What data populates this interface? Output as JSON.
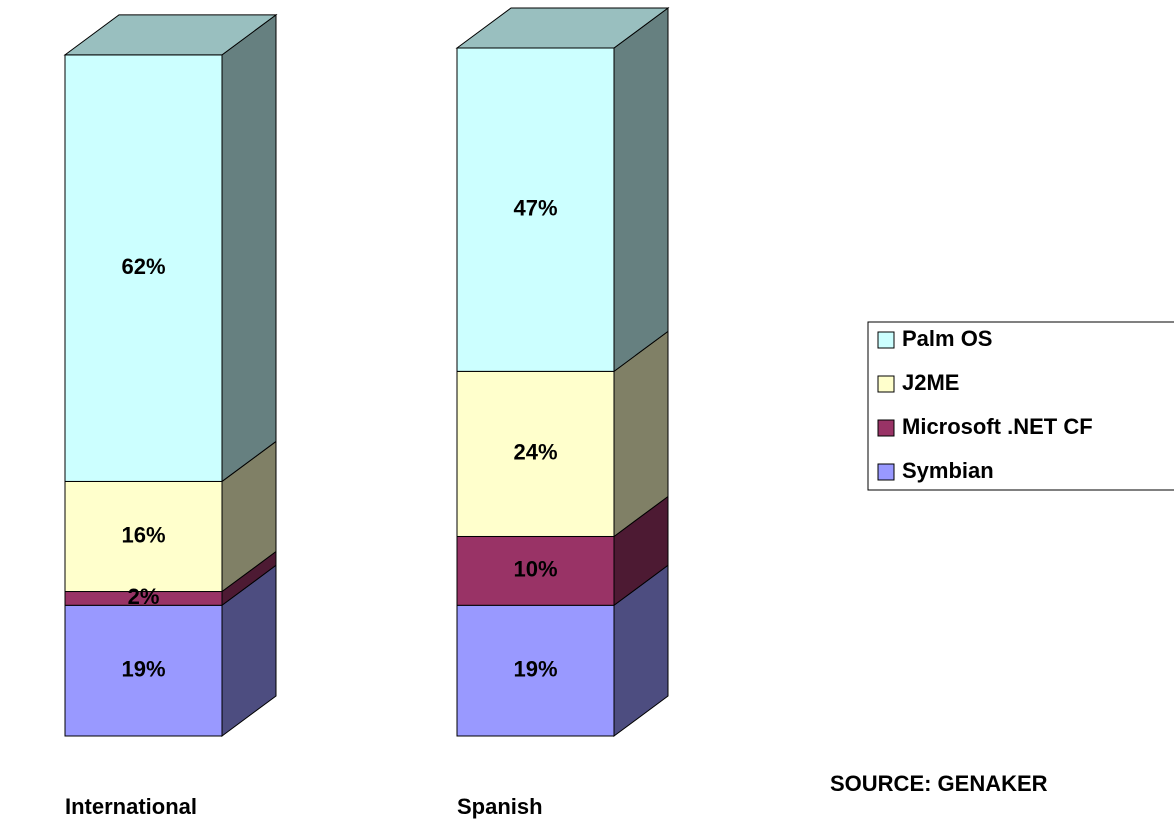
{
  "chart_data": {
    "type": "stacked_bar_3d",
    "categories": [
      "International",
      "Spanish"
    ],
    "series": [
      {
        "name": "Symbian",
        "color": "#9999ff",
        "values": [
          19,
          19
        ],
        "value_labels": [
          "19%",
          "19%"
        ]
      },
      {
        "name": "Microsoft .NET CF",
        "color": "#993366",
        "values": [
          2,
          10
        ],
        "value_labels": [
          "2%",
          "10%"
        ]
      },
      {
        "name": "J2ME",
        "color": "#ffffcc",
        "values": [
          16,
          24
        ],
        "value_labels": [
          "16%",
          "24%"
        ]
      },
      {
        "name": "Palm OS",
        "color": "#ccffff",
        "values": [
          62,
          47
        ],
        "value_labels": [
          "62%",
          "47%"
        ]
      }
    ],
    "annotation": "SOURCE: GENAKER"
  }
}
